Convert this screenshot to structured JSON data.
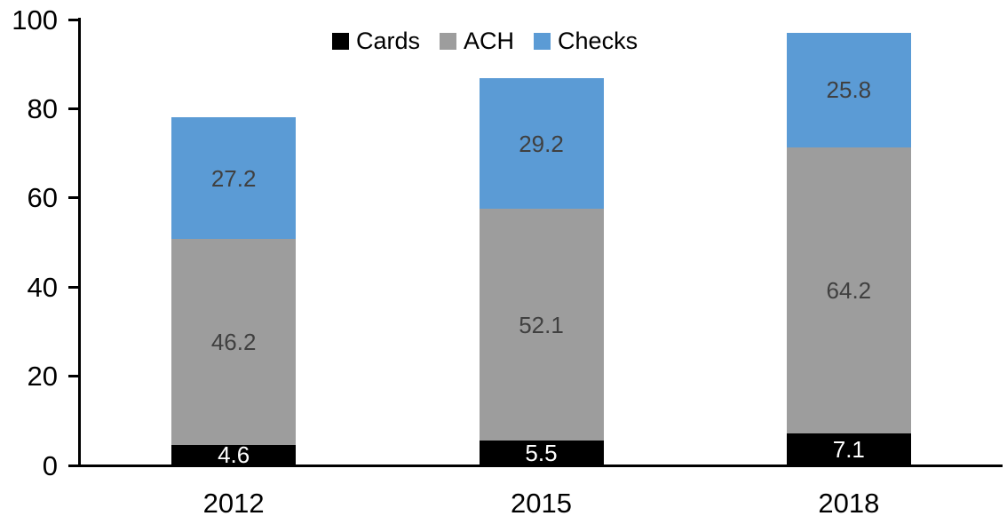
{
  "chart_data": {
    "type": "bar",
    "stacked": true,
    "title": "",
    "categories": [
      "2012",
      "2015",
      "2018"
    ],
    "series": [
      {
        "name": "Cards",
        "color": "#000000",
        "label_color": "#ffffff",
        "values": [
          4.6,
          5.5,
          7.1
        ]
      },
      {
        "name": "ACH",
        "color": "#9d9d9d",
        "label_color": "#404040",
        "values": [
          46.2,
          52.1,
          64.2
        ]
      },
      {
        "name": "Checks",
        "color": "#5b9bd5",
        "label_color": "#404040",
        "values": [
          27.2,
          29.2,
          25.8
        ]
      }
    ],
    "totals": [
      78.0,
      86.8,
      97.1
    ],
    "xlabel": "",
    "ylabel": "",
    "ylim": [
      0,
      100
    ],
    "yticks": [
      0,
      20,
      40,
      60,
      80,
      100
    ],
    "legend_position": "top-center",
    "legend_entries": [
      "Cards",
      "ACH",
      "Checks"
    ],
    "grid": false,
    "axis_color": "#000000",
    "background_color": "#ffffff"
  }
}
